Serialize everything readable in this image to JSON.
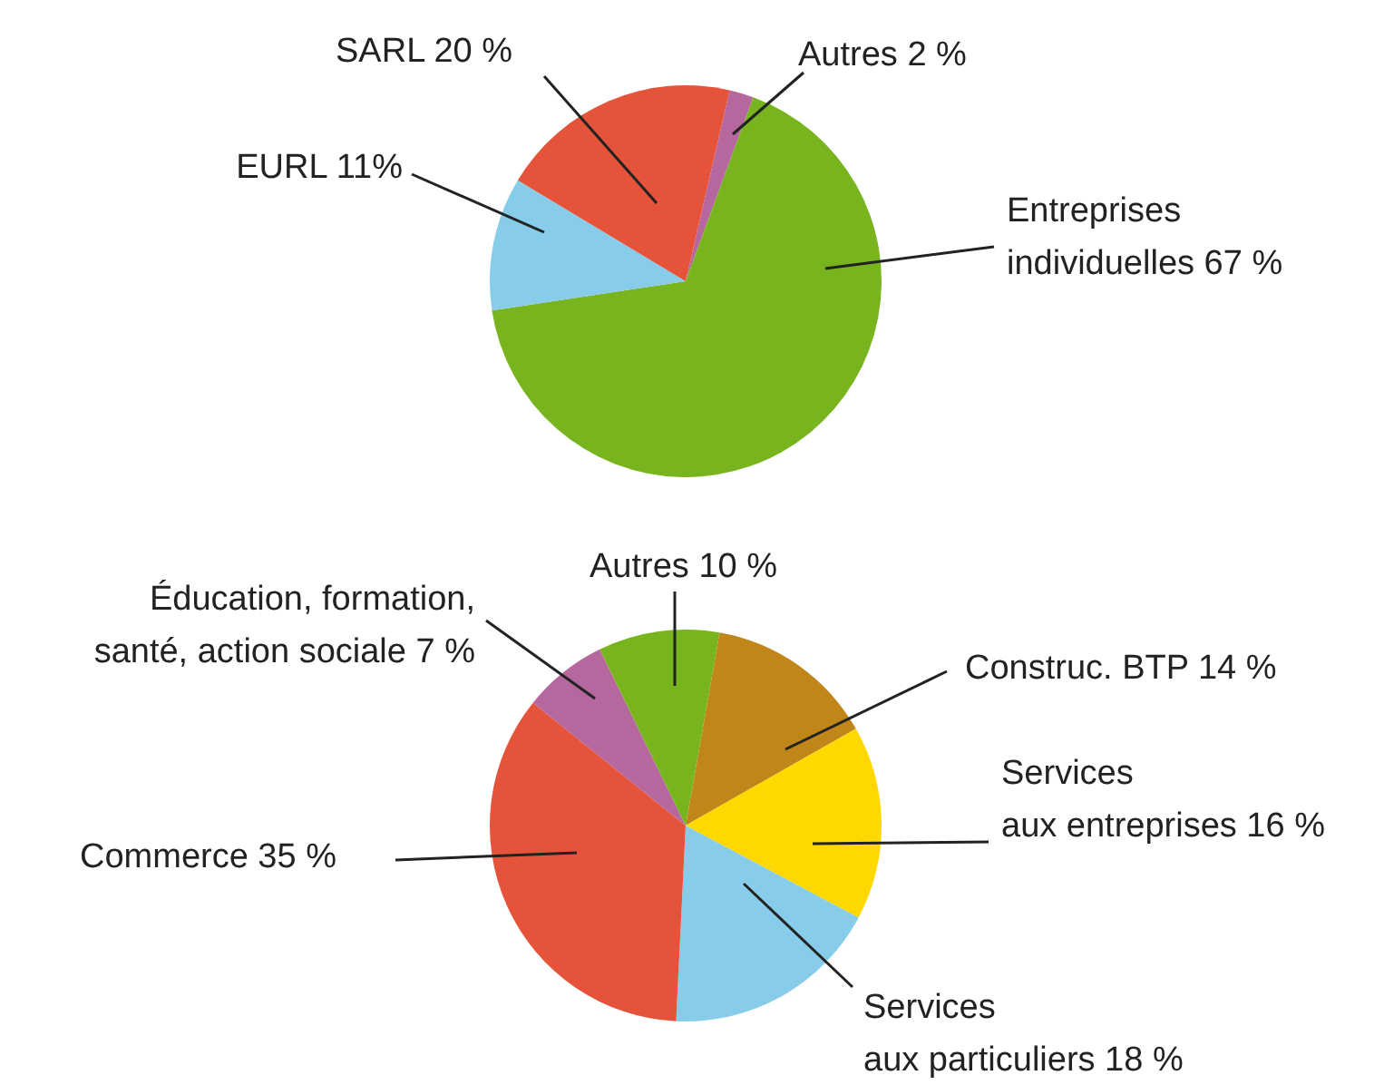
{
  "chart_data": [
    {
      "type": "pie",
      "categories": [
        "Autres",
        "Entreprises individuelles",
        "EURL",
        "SARL"
      ],
      "values": [
        2,
        67,
        11,
        20
      ],
      "colors": [
        "#b5679e",
        "#78b41e",
        "#87cdea",
        "#e5533a"
      ],
      "value_labels": [
        "2 %",
        "67 %",
        "11%",
        "20 %"
      ]
    },
    {
      "type": "pie",
      "categories": [
        "Construc. BTP",
        "Services aux entreprises",
        "Services aux particuliers",
        "Commerce",
        "Éducation, formation, santé, action sociale",
        "Autres"
      ],
      "values": [
        14,
        16,
        18,
        35,
        7,
        10
      ],
      "colors": [
        "#c0861a",
        "#ffd800",
        "#87cdea",
        "#e5533a",
        "#b5679e",
        "#78b41e"
      ],
      "value_labels": [
        "14 %",
        "16 %",
        "18 %",
        "35 %",
        "7 %",
        "10 %"
      ]
    }
  ]
}
